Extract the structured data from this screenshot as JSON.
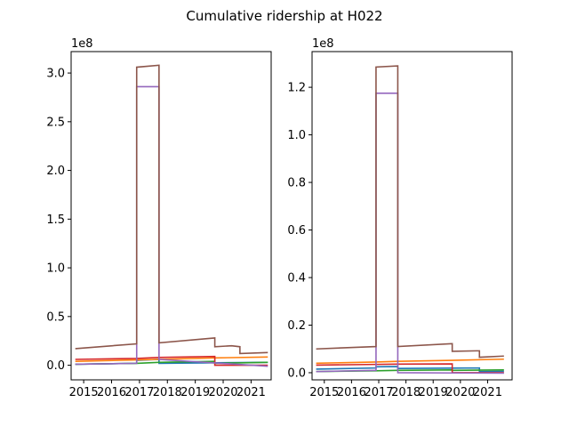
{
  "chart_data": {
    "suptitle": "Cumulative ridership at H022",
    "type": "line",
    "colors": [
      "#1f77b4",
      "#ff7f0e",
      "#2ca02c",
      "#d62728",
      "#9467bd",
      "#8c564b"
    ],
    "charts": [
      {
        "name": "left",
        "xlim": [
          2014.55,
          2021.72
        ],
        "ylim": [
          -0.15,
          3.22
        ],
        "y_offset_label": "1e8",
        "xticks": [
          2015,
          2016,
          2017,
          2018,
          2019,
          2020,
          2021
        ],
        "xtick_labels": [
          "2015",
          "2016",
          "2017",
          "2018",
          "2019",
          "2020",
          "2021"
        ],
        "yticks": [
          0.0,
          0.5,
          1.0,
          1.5,
          2.0,
          2.5,
          3.0
        ],
        "ytick_labels": [
          "0.0",
          "0.5",
          "1.0",
          "1.5",
          "2.0",
          "2.5",
          "3.0"
        ],
        "series": [
          {
            "values": [
              [
                2014.7,
                0.01
              ],
              [
                2016.9,
                0.02
              ],
              [
                2016.9,
                0.05
              ],
              [
                2017.7,
                0.06
              ],
              [
                2017.7,
                0.02
              ],
              [
                2021.6,
                0.03
              ]
            ]
          },
          {
            "values": [
              [
                2014.7,
                0.04
              ],
              [
                2016.9,
                0.055
              ],
              [
                2017.7,
                0.06
              ],
              [
                2019.7,
                0.075
              ],
              [
                2021.6,
                0.085
              ]
            ]
          },
          {
            "values": [
              [
                2014.7,
                0.01
              ],
              [
                2016.9,
                0.02
              ],
              [
                2017.7,
                0.03
              ],
              [
                2019.7,
                0.04
              ],
              [
                2019.7,
                0.02
              ],
              [
                2021.6,
                0.03
              ]
            ]
          },
          {
            "values": [
              [
                2014.7,
                0.06
              ],
              [
                2016.9,
                0.07
              ],
              [
                2017.7,
                0.08
              ],
              [
                2019.7,
                0.09
              ],
              [
                2019.7,
                0.0
              ],
              [
                2021.6,
                0.0
              ]
            ]
          },
          {
            "values": [
              [
                2014.7,
                0.01
              ],
              [
                2016.9,
                0.02
              ],
              [
                2016.9,
                2.86
              ],
              [
                2017.7,
                2.86
              ],
              [
                2017.7,
                0.06
              ],
              [
                2021.6,
                -0.01
              ]
            ]
          },
          {
            "values": [
              [
                2014.7,
                0.17
              ],
              [
                2016.9,
                0.22
              ],
              [
                2016.9,
                3.06
              ],
              [
                2017.7,
                3.08
              ],
              [
                2017.7,
                0.23
              ],
              [
                2019.7,
                0.28
              ],
              [
                2019.7,
                0.19
              ],
              [
                2020.3,
                0.2
              ],
              [
                2020.6,
                0.19
              ],
              [
                2020.6,
                0.12
              ],
              [
                2021.6,
                0.13
              ]
            ]
          }
        ]
      },
      {
        "name": "right",
        "xlim": [
          2014.55,
          2021.9
        ],
        "ylim": [
          -0.03,
          1.35
        ],
        "y_offset_label": "1e8",
        "xticks": [
          2015,
          2016,
          2017,
          2018,
          2019,
          2020,
          2021
        ],
        "xtick_labels": [
          "2015",
          "2016",
          "2017",
          "2018",
          "2019",
          "2020",
          "2021"
        ],
        "yticks": [
          0.0,
          0.2,
          0.4,
          0.6,
          0.8,
          1.0,
          1.2
        ],
        "ytick_labels": [
          "0.0",
          "0.2",
          "0.4",
          "0.6",
          "0.8",
          "1.0",
          "1.2"
        ],
        "series": [
          {
            "values": [
              [
                2014.7,
                0.015
              ],
              [
                2016.9,
                0.02
              ],
              [
                2016.9,
                0.025
              ],
              [
                2017.7,
                0.026
              ],
              [
                2017.7,
                0.018
              ],
              [
                2020.7,
                0.02
              ],
              [
                2020.7,
                0.005
              ],
              [
                2021.6,
                0.006
              ]
            ]
          },
          {
            "values": [
              [
                2014.7,
                0.04
              ],
              [
                2016.9,
                0.045
              ],
              [
                2017.7,
                0.048
              ],
              [
                2019.7,
                0.052
              ],
              [
                2021.6,
                0.057
              ]
            ]
          },
          {
            "values": [
              [
                2014.7,
                0.005
              ],
              [
                2016.9,
                0.008
              ],
              [
                2017.7,
                0.01
              ],
              [
                2019.7,
                0.012
              ],
              [
                2019.7,
                0.01
              ],
              [
                2021.6,
                0.012
              ]
            ]
          },
          {
            "values": [
              [
                2014.7,
                0.032
              ],
              [
                2016.9,
                0.035
              ],
              [
                2017.7,
                0.036
              ],
              [
                2019.7,
                0.037
              ],
              [
                2019.7,
                0.0
              ],
              [
                2021.6,
                0.0
              ]
            ]
          },
          {
            "values": [
              [
                2014.7,
                0.005
              ],
              [
                2016.9,
                0.01
              ],
              [
                2016.9,
                1.175
              ],
              [
                2017.7,
                1.175
              ],
              [
                2017.7,
                0.0
              ],
              [
                2021.6,
                -0.002
              ]
            ]
          },
          {
            "values": [
              [
                2014.7,
                0.1
              ],
              [
                2016.9,
                0.11
              ],
              [
                2016.9,
                1.285
              ],
              [
                2017.7,
                1.29
              ],
              [
                2017.7,
                0.11
              ],
              [
                2019.7,
                0.122
              ],
              [
                2019.7,
                0.09
              ],
              [
                2020.6,
                0.092
              ],
              [
                2020.7,
                0.092
              ],
              [
                2020.7,
                0.065
              ],
              [
                2021.6,
                0.07
              ]
            ]
          }
        ]
      }
    ]
  }
}
